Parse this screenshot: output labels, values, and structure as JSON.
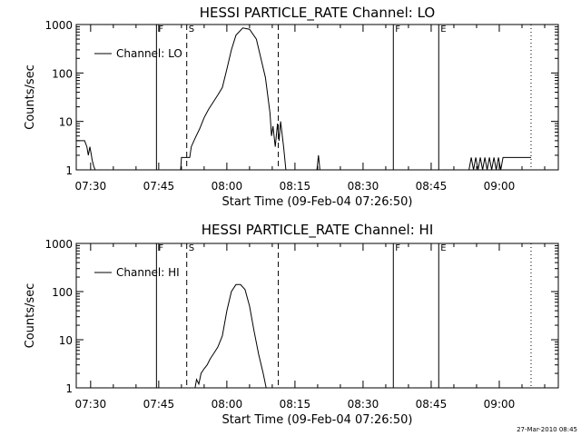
{
  "chart_data": [
    {
      "type": "line",
      "title": "HESSI PARTICLE_RATE Channel: LO",
      "xlabel": "Start Time (09-Feb-04 07:26:50)",
      "ylabel": "Counts/sec",
      "yscale": "log",
      "ylim": [
        1,
        1000
      ],
      "xlim": [
        "07:26:50",
        "09:13:00"
      ],
      "xticks": [
        "07:30",
        "07:45",
        "08:00",
        "08:15",
        "08:30",
        "08:45",
        "09:00"
      ],
      "yticks": [
        "1",
        "10",
        "100",
        "1000"
      ],
      "legend": {
        "label": "Channel: LO",
        "position": "top-left"
      },
      "grid": false,
      "markers": [
        {
          "label": "F",
          "time": "07:44:30",
          "style": "solid"
        },
        {
          "label": "S",
          "time": "07:51:10",
          "style": "dashed"
        },
        {
          "label": "",
          "time": "08:11:20",
          "style": "dashed"
        },
        {
          "label": "F",
          "time": "08:36:40",
          "style": "solid"
        },
        {
          "label": "E",
          "time": "08:46:40",
          "style": "solid"
        },
        {
          "label": "",
          "time": "09:07:00",
          "style": "dotted"
        }
      ],
      "segments": [
        {
          "points": [
            [
              "07:26:50",
              4
            ],
            [
              "07:28:40",
              4
            ],
            [
              "07:29:10",
              3
            ],
            [
              "07:29:30",
              2
            ],
            [
              "07:29:50",
              3
            ],
            [
              "07:30:10",
              2
            ],
            [
              "07:30:20",
              1.6
            ],
            [
              "07:30:40",
              1.2
            ],
            [
              "07:31:00",
              1
            ]
          ]
        },
        {
          "points": [
            [
              "07:49:50",
              1
            ],
            [
              "07:50:00",
              1.8
            ],
            [
              "07:51:50",
              1.8
            ],
            [
              "07:52:10",
              3
            ],
            [
              "07:53:00",
              4.5
            ],
            [
              "07:54:00",
              7
            ],
            [
              "07:55:00",
              12
            ],
            [
              "07:56:00",
              18
            ],
            [
              "07:57:00",
              25
            ],
            [
              "07:58:00",
              35
            ],
            [
              "07:59:00",
              50
            ],
            [
              "08:00:00",
              120
            ],
            [
              "08:01:00",
              300
            ],
            [
              "08:02:00",
              600
            ],
            [
              "08:03:30",
              850
            ],
            [
              "08:05:00",
              800
            ],
            [
              "08:06:30",
              500
            ],
            [
              "08:07:30",
              200
            ],
            [
              "08:08:30",
              80
            ],
            [
              "08:09:30",
              15
            ],
            [
              "08:09:50",
              5
            ],
            [
              "08:10:10",
              8
            ],
            [
              "08:10:40",
              3
            ],
            [
              "08:11:10",
              9
            ],
            [
              "08:11:30",
              4
            ],
            [
              "08:11:50",
              10
            ],
            [
              "08:12:30",
              3
            ],
            [
              "08:13:00",
              1
            ]
          ]
        },
        {
          "points": [
            [
              "08:19:50",
              1
            ],
            [
              "08:20:10",
              2
            ],
            [
              "08:20:30",
              1
            ]
          ]
        },
        {
          "points": [
            [
              "08:53:20",
              1
            ],
            [
              "08:53:50",
              1.8
            ],
            [
              "08:54:20",
              1
            ],
            [
              "08:54:50",
              1.8
            ],
            [
              "08:55:20",
              1
            ],
            [
              "08:55:50",
              1.8
            ],
            [
              "08:56:20",
              1
            ],
            [
              "08:56:50",
              1.8
            ],
            [
              "08:57:20",
              1
            ],
            [
              "08:57:50",
              1.8
            ],
            [
              "08:58:20",
              1
            ],
            [
              "08:58:50",
              1.8
            ],
            [
              "08:59:20",
              1
            ],
            [
              "08:59:50",
              1.8
            ],
            [
              "09:00:20",
              1
            ],
            [
              "09:00:50",
              1.8
            ],
            [
              "09:07:00",
              1.8
            ]
          ]
        }
      ]
    },
    {
      "type": "line",
      "title": "HESSI PARTICLE_RATE Channel: HI",
      "xlabel": "Start Time (09-Feb-04 07:26:50)",
      "ylabel": "Counts/sec",
      "yscale": "log",
      "ylim": [
        1,
        1000
      ],
      "xlim": [
        "07:26:50",
        "09:13:00"
      ],
      "xticks": [
        "07:30",
        "07:45",
        "08:00",
        "08:15",
        "08:30",
        "08:45",
        "09:00"
      ],
      "yticks": [
        "1",
        "10",
        "100",
        "1000"
      ],
      "legend": {
        "label": "Channel: HI",
        "position": "top-left"
      },
      "grid": false,
      "markers": [
        {
          "label": "F",
          "time": "07:44:30",
          "style": "solid"
        },
        {
          "label": "S",
          "time": "07:51:10",
          "style": "dashed"
        },
        {
          "label": "",
          "time": "08:11:20",
          "style": "dashed"
        },
        {
          "label": "F",
          "time": "08:36:40",
          "style": "solid"
        },
        {
          "label": "E",
          "time": "08:46:40",
          "style": "solid"
        },
        {
          "label": "",
          "time": "09:07:00",
          "style": "dotted"
        }
      ],
      "segments": [
        {
          "points": [
            [
              "07:53:00",
              1
            ],
            [
              "07:53:20",
              1.5
            ],
            [
              "07:53:50",
              1.2
            ],
            [
              "07:54:20",
              2
            ],
            [
              "07:55:00",
              2.5
            ],
            [
              "07:55:40",
              3
            ],
            [
              "07:56:20",
              4
            ],
            [
              "07:57:00",
              5
            ],
            [
              "07:58:00",
              7
            ],
            [
              "07:59:00",
              12
            ],
            [
              "08:00:00",
              40
            ],
            [
              "08:01:00",
              100
            ],
            [
              "08:02:00",
              140
            ],
            [
              "08:03:00",
              140
            ],
            [
              "08:04:00",
              110
            ],
            [
              "08:05:00",
              50
            ],
            [
              "08:06:00",
              15
            ],
            [
              "08:07:00",
              5
            ],
            [
              "08:08:00",
              2
            ],
            [
              "08:08:40",
              1
            ]
          ]
        }
      ]
    }
  ],
  "timestamp": "27-Mar-2010 08:45"
}
